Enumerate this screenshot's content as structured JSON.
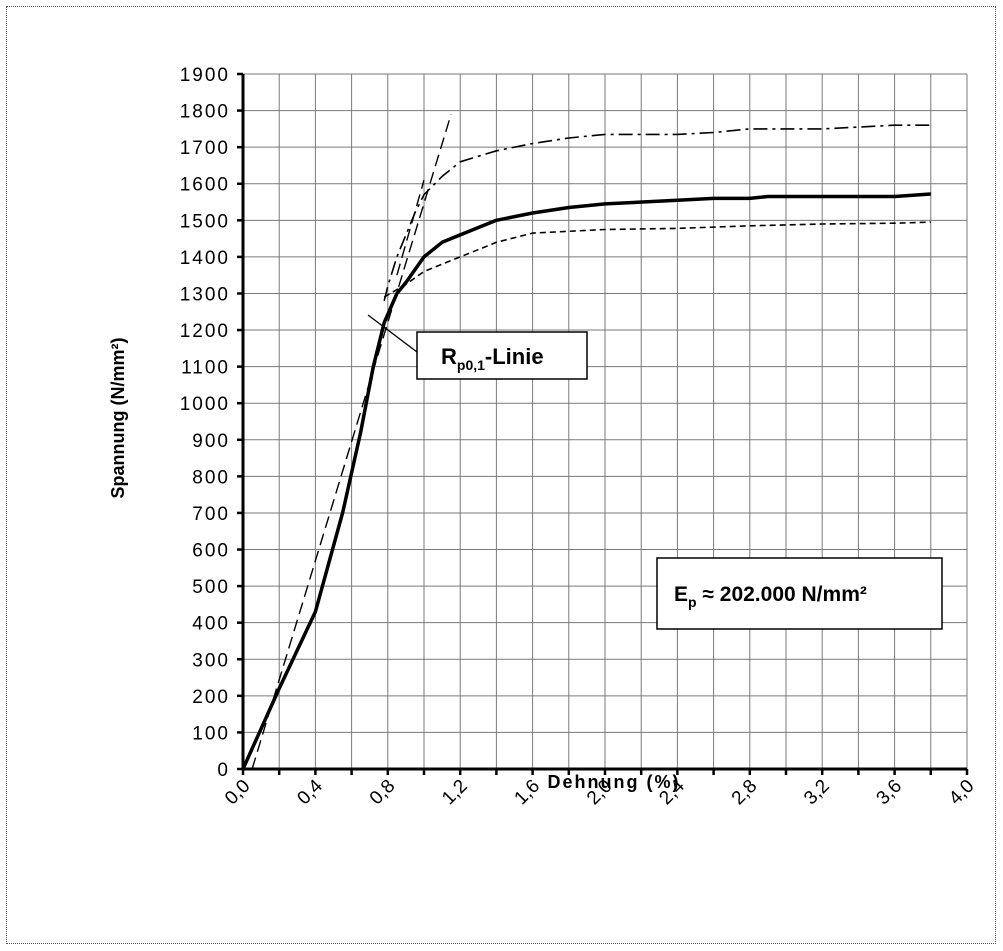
{
  "chart_data": {
    "type": "line",
    "xlabel": "Dehnung (%)",
    "ylabel": "Spannung (N/mm²)",
    "xlim": [
      0,
      4.0
    ],
    "ylim": [
      0,
      1900
    ],
    "x_ticks": [
      "0,0",
      "0,4",
      "0,8",
      "1,2",
      "1,6",
      "2,0",
      "2,4",
      "2,8",
      "3,2",
      "3,6",
      "4,0"
    ],
    "y_ticks": [
      "0",
      "100",
      "200",
      "300",
      "400",
      "500",
      "600",
      "700",
      "800",
      "900",
      "1000",
      "1100",
      "1200",
      "1300",
      "1400",
      "1500",
      "1600",
      "1700",
      "1800",
      "1900"
    ],
    "grid": true,
    "annotations": {
      "rp_line": {
        "main": "R",
        "sub": "p0,1",
        "suffix": "-Linie"
      },
      "modulus": {
        "main": "E",
        "sub": "p",
        "suffix": " ≈ 202.000 N/mm²"
      }
    },
    "series": [
      {
        "style": "solid-thick",
        "x": [
          0,
          0.2,
          0.4,
          0.55,
          0.65,
          0.72,
          0.78,
          0.85,
          0.9,
          1.0,
          1.1,
          1.2,
          1.4,
          1.6,
          1.8,
          2.0,
          2.4,
          2.6,
          2.8,
          2.9,
          3.2,
          3.6,
          3.8
        ],
        "y": [
          0,
          220,
          430,
          700,
          920,
          1100,
          1220,
          1300,
          1330,
          1400,
          1440,
          1460,
          1500,
          1520,
          1535,
          1545,
          1555,
          1560,
          1560,
          1565,
          1565,
          1565,
          1572
        ]
      },
      {
        "style": "dash-dot",
        "x": [
          0.78,
          0.8,
          0.85,
          0.9,
          0.95,
          1.0,
          1.1,
          1.2,
          1.4,
          1.6,
          1.8,
          2.0,
          2.2,
          2.4,
          2.6,
          2.8,
          3.0,
          3.2,
          3.6,
          3.8
        ],
        "y": [
          1280,
          1320,
          1400,
          1460,
          1520,
          1570,
          1620,
          1660,
          1690,
          1710,
          1725,
          1735,
          1735,
          1735,
          1740,
          1750,
          1750,
          1750,
          1760,
          1760
        ]
      },
      {
        "style": "short-dash",
        "x": [
          0.78,
          0.9,
          1.0,
          1.2,
          1.4,
          1.6,
          2.0,
          2.4,
          2.8,
          3.2,
          3.6,
          3.8
        ],
        "y": [
          1290,
          1325,
          1360,
          1400,
          1440,
          1465,
          1475,
          1478,
          1485,
          1490,
          1492,
          1495
        ]
      },
      {
        "style": "long-dash",
        "x": [
          0.05,
          1.15
        ],
        "y": [
          0,
          1790
        ]
      },
      {
        "style": "long-dash",
        "x": [
          0.85,
          1.0
        ],
        "y": [
          1350,
          1610
        ]
      }
    ]
  }
}
